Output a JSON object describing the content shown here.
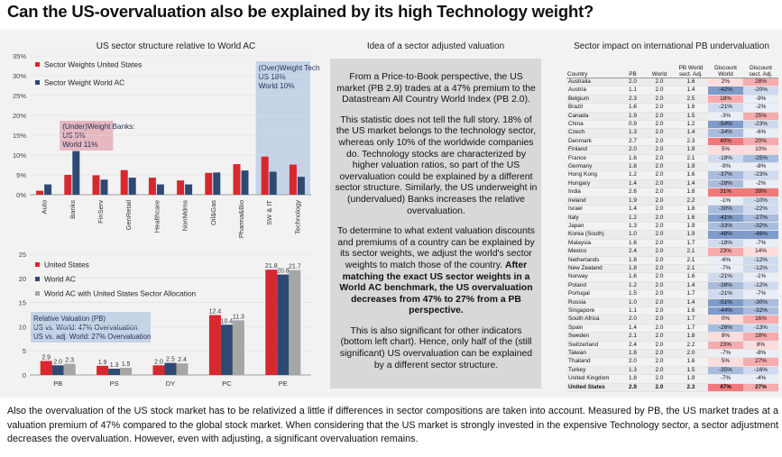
{
  "page_title": "Can the US-overvaluation also be explained by its high Technology weight?",
  "panel_titles": {
    "left": "US sector structure relative to World AC",
    "middle": "Idea of a sector adjusted valuation",
    "right": "Sector impact on international PB undervaluation"
  },
  "idea": {
    "p1": "From a Price-to-Book perspective, the US market (PB 2.9) trades at a 47% premium to the Datastream All Country World Index (PB 2.0).",
    "p2": "This statistic does not tell the full story. 18% of the US market belongs to the technology sector, whereas only 10% of the worldwide companies do. Technology stocks are characterized by higher valuation ratios, so part of the US overvaluation could be explained by a different sector structure. Similarly, the US underweight in (undervalued) Banks increases the relative overvaluation.",
    "p3": "To determine to what extent valuation discounts and premiums of a country can be explained by its sector weights, we adjust the world's sector weights to match those of the country.",
    "p3_bold": "After matching the exact US sector weights in a World AC benchmark, the US overvaluation decreases from 47% to 27% from a PB perspective.",
    "p4": "This is also significant for other indicators (bottom left chart). Hence, only half of the (still significant) US overvaluation can be explained by a different sector structure."
  },
  "caption": "Also the overvaluation of the US stock market has to be relativized a little if differences in sector compositions are taken into account. Measured by PB, the US market trades at a valuation premium of 47% compared to the global stock market. When considering that the US market is strongly invested in the expensive Technology sector, a sector adjustment decreases the overvaluation. However, even with adjusting, a significant overvaluation remains.",
  "colors": {
    "us": "#d7272f",
    "world": "#2e4a73",
    "adjusted": "#a6a6a6",
    "tech_box": "#c5d3e6",
    "bank_box": "#e6b8bf",
    "relval_box": "#c5d3e6"
  },
  "chart_data": [
    {
      "type": "bar",
      "title": "US sector structure relative to World AC",
      "categories": [
        "Auto",
        "Banks",
        "FinServ",
        "GenRetail",
        "Healthcare",
        "NonMdms",
        "Oil&Gas",
        "Pharma&Bio",
        "SW & IT",
        "Technology"
      ],
      "series": [
        {
          "name": "Sector Weights United States",
          "values": [
            1.0,
            5.0,
            4.9,
            6.2,
            4.3,
            3.6,
            5.5,
            7.7,
            9.6,
            7.6
          ]
        },
        {
          "name": "Sector Weight World AC",
          "values": [
            2.6,
            11.0,
            3.8,
            4.3,
            2.6,
            2.6,
            5.6,
            6.1,
            5.8,
            4.5
          ]
        }
      ],
      "ylim": [
        0,
        35
      ],
      "yticks": [
        "0%",
        "5%",
        "10%",
        "15%",
        "20%",
        "25%",
        "30%",
        "35%"
      ],
      "annotations": [
        {
          "lines": [
            "(Over)Weight Technology",
            "US 18%",
            "World 10%"
          ]
        },
        {
          "lines": [
            "(Under)Weight Banks:",
            "US 5%",
            "World 11%"
          ]
        }
      ],
      "legend": "top-left"
    },
    {
      "type": "bar",
      "categories": [
        "PB",
        "PS",
        "DY",
        "PC",
        "PE"
      ],
      "series": [
        {
          "name": "United States",
          "values": [
            2.9,
            1.9,
            2.0,
            12.4,
            21.8
          ],
          "labels": [
            "2.9",
            "1.9",
            "2.0",
            "12.4",
            "21.8"
          ]
        },
        {
          "name": "World AC",
          "values": [
            2.0,
            1.3,
            2.5,
            10.4,
            20.8
          ],
          "labels": [
            "2.0",
            "1.3",
            "2.5",
            "10.4",
            "20.8"
          ]
        },
        {
          "name": "World AC with United States Sector Allocation",
          "values": [
            2.3,
            1.5,
            2.4,
            11.3,
            21.7
          ],
          "labels": [
            "2.3",
            "1.5",
            "2.4",
            "11.3",
            "21.7"
          ]
        }
      ],
      "ylim": [
        0,
        25
      ],
      "yticks": [
        "0",
        "5",
        "10",
        "15",
        "20",
        "25"
      ],
      "annotations": [
        {
          "lines": [
            "Relative Valuation (PB)",
            "US vs. World: 47% Overvaluation",
            "US vs. adj. World: 27% Overvaluation"
          ]
        }
      ],
      "legend": "top-left"
    },
    {
      "type": "table",
      "title": "Sector impact on international PB undervaluation",
      "columns": [
        "Country",
        "PB",
        "World",
        "PB World sect. Adj.",
        "Discount World",
        "Discount sect. Adj."
      ],
      "rows": [
        [
          "Australia",
          "2.0",
          "2.0",
          "1.6",
          "2%",
          "28%"
        ],
        [
          "Austria",
          "1.1",
          "2.0",
          "1.4",
          "-42%",
          "-20%"
        ],
        [
          "Belgium",
          "2.3",
          "2.0",
          "2.5",
          "18%",
          "-9%"
        ],
        [
          "Brazil",
          "1.6",
          "2.0",
          "1.6",
          "-21%",
          "-2%"
        ],
        [
          "Canada",
          "1.9",
          "2.0",
          "1.5",
          "-3%",
          "25%"
        ],
        [
          "China",
          "0.9",
          "2.0",
          "1.2",
          "-54%",
          "-23%"
        ],
        [
          "Czech",
          "1.3",
          "2.0",
          "1.4",
          "-34%",
          "-6%"
        ],
        [
          "Denmark",
          "2.7",
          "2.0",
          "2.3",
          "40%",
          "20%"
        ],
        [
          "Finland",
          "2.0",
          "2.0",
          "1.9",
          "5%",
          "10%"
        ],
        [
          "France",
          "1.6",
          "2.0",
          "2.1",
          "-18%",
          "-25%"
        ],
        [
          "Germany",
          "1.8",
          "2.0",
          "1.9",
          "-9%",
          "-8%"
        ],
        [
          "Hong Kong",
          "1.2",
          "2.0",
          "1.6",
          "-37%",
          "-23%"
        ],
        [
          "Hungary",
          "1.4",
          "2.0",
          "1.4",
          "-28%",
          "-2%"
        ],
        [
          "India",
          "2.6",
          "2.0",
          "1.8",
          "31%",
          "39%"
        ],
        [
          "Ireland",
          "1.9",
          "2.0",
          "2.2",
          "-1%",
          "-10%"
        ],
        [
          "Israel",
          "1.4",
          "2.0",
          "1.8",
          "-30%",
          "-22%"
        ],
        [
          "Italy",
          "1.2",
          "2.0",
          "1.6",
          "-41%",
          "-27%"
        ],
        [
          "Japan",
          "1.3",
          "2.0",
          "1.9",
          "-33%",
          "-32%"
        ],
        [
          "Korea (South)",
          "1.0",
          "2.0",
          "1.9",
          "-48%",
          "-46%"
        ],
        [
          "Malaysia",
          "1.6",
          "2.0",
          "1.7",
          "-18%",
          "-7%"
        ],
        [
          "Mexico",
          "2.4",
          "2.0",
          "2.1",
          "23%",
          "14%"
        ],
        [
          "Netherlands",
          "1.8",
          "2.0",
          "2.1",
          "-6%",
          "-12%"
        ],
        [
          "New Zealand",
          "1.8",
          "2.0",
          "2.1",
          "-7%",
          "-12%"
        ],
        [
          "Norway",
          "1.6",
          "2.0",
          "1.6",
          "-21%",
          "-1%"
        ],
        [
          "Poland",
          "1.2",
          "2.0",
          "1.4",
          "-38%",
          "-12%"
        ],
        [
          "Portugal",
          "1.5",
          "2.0",
          "1.7",
          "-21%",
          "-7%"
        ],
        [
          "Russia",
          "1.0",
          "2.0",
          "1.4",
          "-51%",
          "-30%"
        ],
        [
          "Singapore",
          "1.1",
          "2.0",
          "1.6",
          "-44%",
          "-32%"
        ],
        [
          "South Africa",
          "2.0",
          "2.0",
          "1.7",
          "0%",
          "16%"
        ],
        [
          "Spain",
          "1.4",
          "2.0",
          "1.7",
          "-26%",
          "-13%"
        ],
        [
          "Sweden",
          "2.1",
          "2.0",
          "1.8",
          "8%",
          "18%"
        ],
        [
          "Switzerland",
          "2.4",
          "2.0",
          "2.2",
          "23%",
          "8%"
        ],
        [
          "Taiwan",
          "1.8",
          "2.0",
          "2.0",
          "-7%",
          "-8%"
        ],
        [
          "Thailand",
          "2.0",
          "2.0",
          "1.6",
          "5%",
          "27%"
        ],
        [
          "Turkey",
          "1.3",
          "2.0",
          "1.5",
          "-35%",
          "-16%"
        ],
        [
          "United Kingdom",
          "1.8",
          "2.0",
          "1.9",
          "-7%",
          "-4%"
        ],
        [
          "United States",
          "2.9",
          "2.0",
          "2.3",
          "47%",
          "27%"
        ]
      ]
    }
  ]
}
